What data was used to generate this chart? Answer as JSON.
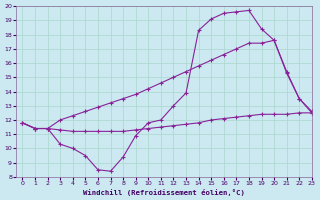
{
  "background_color": "#cce8f0",
  "grid_color": "#aad8cc",
  "line_color": "#882299",
  "xlabel": "Windchill (Refroidissement éolien,°C)",
  "xlim": [
    -0.5,
    23
  ],
  "ylim": [
    8,
    20
  ],
  "xticks": [
    0,
    1,
    2,
    3,
    4,
    5,
    6,
    7,
    8,
    9,
    10,
    11,
    12,
    13,
    14,
    15,
    16,
    17,
    18,
    19,
    20,
    21,
    22,
    23
  ],
  "yticks": [
    8,
    9,
    10,
    11,
    12,
    13,
    14,
    15,
    16,
    17,
    18,
    19,
    20
  ],
  "line1_x": [
    0,
    1,
    2,
    3,
    4,
    5,
    6,
    7,
    8,
    9,
    10,
    11,
    12,
    13,
    14,
    15,
    16,
    17,
    18,
    19,
    20,
    21,
    22,
    23
  ],
  "line1_y": [
    11.8,
    11.4,
    11.4,
    10.3,
    10.0,
    9.5,
    8.5,
    8.4,
    9.4,
    10.9,
    11.8,
    12.0,
    13.0,
    13.9,
    18.3,
    19.1,
    19.5,
    19.6,
    19.7,
    18.4,
    17.6,
    15.3,
    13.5,
    12.6
  ],
  "line2_x": [
    0,
    1,
    2,
    3,
    4,
    5,
    6,
    7,
    8,
    9,
    10,
    11,
    12,
    13,
    14,
    15,
    16,
    17,
    18,
    19,
    20,
    21,
    22,
    23
  ],
  "line2_y": [
    11.8,
    11.4,
    11.4,
    11.3,
    11.2,
    11.2,
    11.2,
    11.2,
    11.2,
    11.3,
    11.4,
    11.5,
    11.6,
    11.7,
    11.8,
    12.0,
    12.1,
    12.2,
    12.3,
    12.4,
    12.4,
    12.4,
    12.5,
    12.5
  ],
  "line3_x": [
    0,
    1,
    2,
    3,
    4,
    5,
    6,
    7,
    8,
    9,
    10,
    11,
    12,
    13,
    14,
    15,
    16,
    17,
    18,
    19,
    20,
    21,
    22,
    23
  ],
  "line3_y": [
    11.8,
    11.4,
    11.4,
    12.0,
    12.3,
    12.6,
    12.9,
    13.2,
    13.5,
    13.8,
    14.2,
    14.6,
    15.0,
    15.4,
    15.8,
    16.2,
    16.6,
    17.0,
    17.4,
    17.4,
    17.6,
    15.4,
    13.5,
    12.5
  ]
}
